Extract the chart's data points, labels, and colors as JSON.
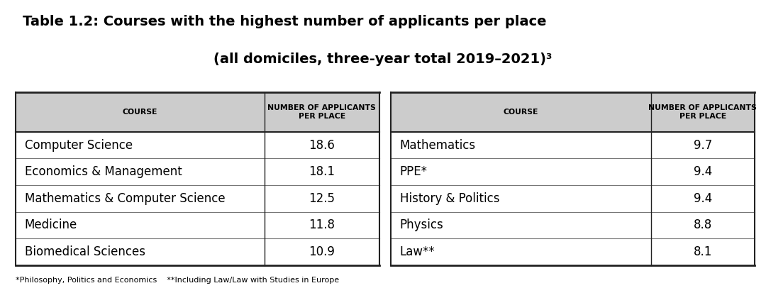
{
  "title_line1": "Table 1.2: Courses with the highest number of applicants per place",
  "title_line2": "(all domiciles, three-year total 2019–2021)³",
  "header_col1": "COURSE",
  "header_col2": "NUMBER OF APPLICANTS\nPER PLACE",
  "left_courses": [
    "Computer Science",
    "Economics & Management",
    "Mathematics & Computer Science",
    "Medicine",
    "Biomedical Sciences"
  ],
  "left_values": [
    "18.6",
    "18.1",
    "12.5",
    "11.8",
    "10.9"
  ],
  "right_courses": [
    "Mathematics",
    "PPE*",
    "History & Politics",
    "Physics",
    "Law**"
  ],
  "right_values": [
    "9.7",
    "9.4",
    "9.4",
    "8.8",
    "8.1"
  ],
  "footnote": "*Philosophy, Politics and Economics    **Including Law/Law with Studies in Europe",
  "header_bg": "#cccccc",
  "row_bg": "#ffffff",
  "divider_color": "#777777",
  "border_color": "#222222",
  "text_color": "#000000",
  "background_color": "#ffffff",
  "title_fontsize": 14,
  "header_fontsize": 7.8,
  "body_fontsize": 12,
  "footnote_fontsize": 8
}
